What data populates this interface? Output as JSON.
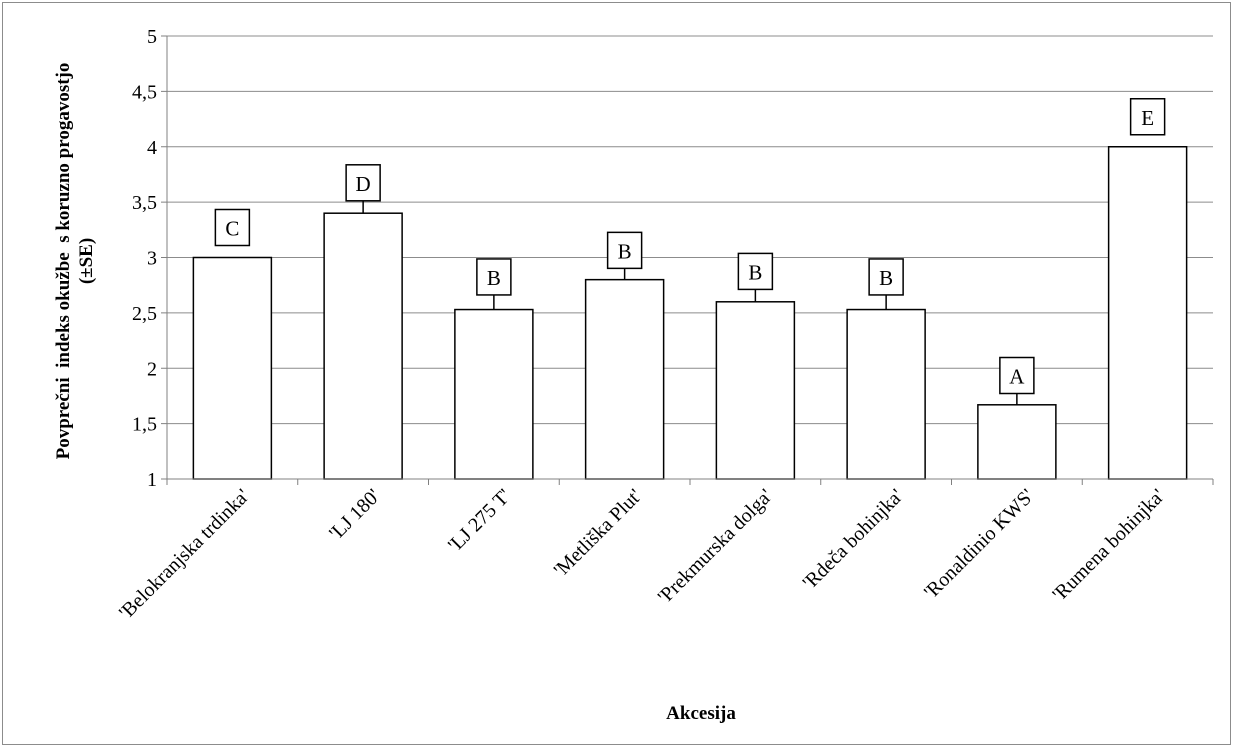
{
  "chart_data": {
    "type": "bar",
    "title": "",
    "xlabel": "Akcesija",
    "ylabel_line1": "Povprečni  indeks okužbe  s koruzno progavostjo",
    "ylabel_line2": "(±SE)",
    "categories": [
      "'Belokranjska trdinka'",
      "'LJ 180'",
      "'LJ 275 T'",
      "'Metliška Plut'",
      "'Prekmurska dolga'",
      "'Rdeča bohinjka'",
      "'Ronaldinio KWS'",
      "'Rumena bohinjka'"
    ],
    "values": [
      3.0,
      3.4,
      2.53,
      2.8,
      2.6,
      2.53,
      1.67,
      4.0
    ],
    "errors": [
      0,
      0.13,
      0.15,
      0.12,
      0.13,
      0.15,
      0.12,
      0
    ],
    "significance_letters": [
      "C",
      "D",
      "B",
      "B",
      "B",
      "B",
      "A",
      "E"
    ],
    "yticks": [
      "1",
      "1,5",
      "2",
      "2,5",
      "3",
      "3,5",
      "4",
      "4,5",
      "5"
    ],
    "ylim": [
      1,
      5
    ],
    "grid": true,
    "legend": "none",
    "bar_fill": "#ffffff",
    "bar_stroke": "#000000",
    "grid_color": "#8c8c8c"
  }
}
